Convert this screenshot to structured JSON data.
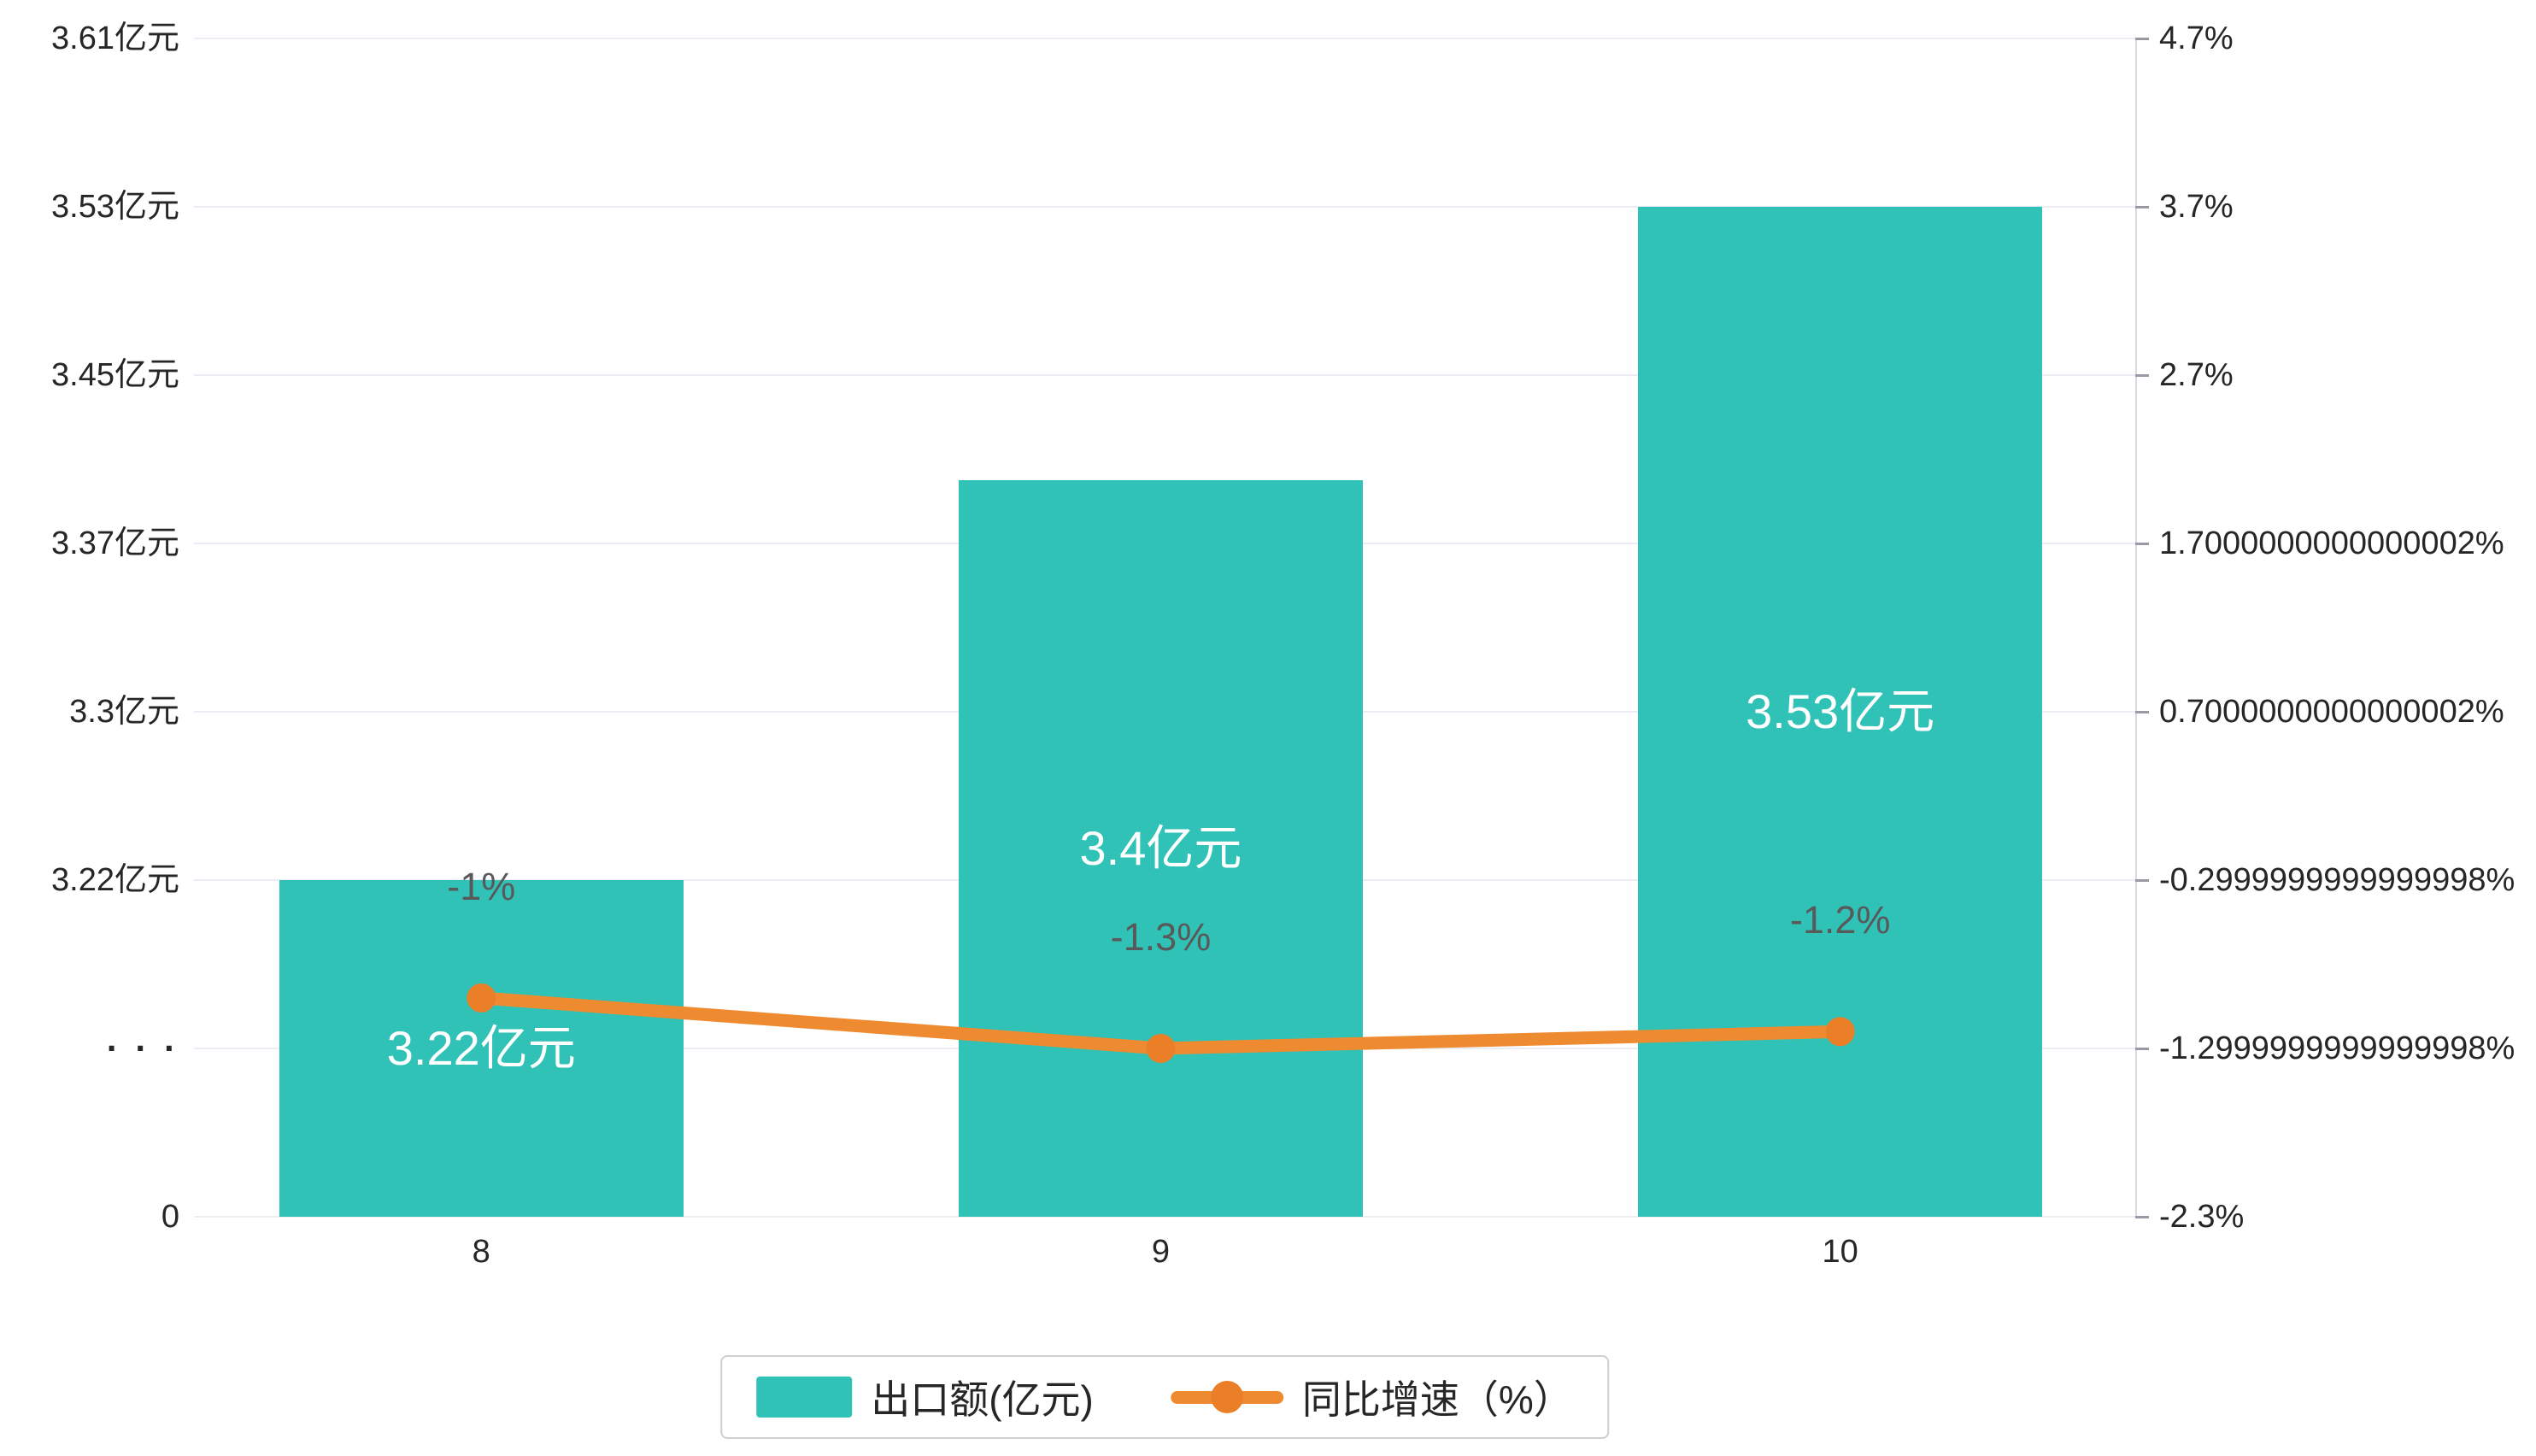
{
  "chart_data": {
    "type": "bar",
    "subtype": "bar-line-combo",
    "categories": [
      "8",
      "9",
      "10"
    ],
    "series": [
      {
        "name": "出口额(亿元)",
        "type": "bar",
        "axis": "left",
        "values": [
          3.22,
          3.4,
          3.53
        ],
        "labels": [
          "3.22亿元",
          "3.4亿元",
          "3.53亿元"
        ],
        "color": "#31c2b7"
      },
      {
        "name": "同比增速（%）",
        "type": "line",
        "axis": "right",
        "values": [
          -1,
          -1.3,
          -1.2
        ],
        "labels": [
          "-1%",
          "-1.3%",
          "-1.2%"
        ],
        "color": "#ee8a30"
      }
    ],
    "left_axis": {
      "tick_labels": [
        "3.61亿元",
        "3.53亿元",
        "3.45亿元",
        "3.37亿元",
        "3.3亿元",
        "3.22亿元",
        "· · ·",
        "0"
      ],
      "value_ticks": [
        3.61,
        3.53,
        3.45,
        3.37,
        3.3,
        3.22
      ],
      "has_break": true,
      "break_label": "· · ·",
      "zero_label": "0"
    },
    "right_axis": {
      "tick_labels": [
        "4.7%",
        "3.7%",
        "2.7%",
        "1.7000000000000002%",
        "0.7000000000000002%",
        "-0.2999999999999998%",
        "-1.2999999999999998%",
        "-2.3%"
      ],
      "max": 4.7,
      "step": 1
    },
    "legend": [
      {
        "label": "出口额(亿元)"
      },
      {
        "label": "同比增速（%）"
      }
    ],
    "grid": true,
    "legend_position": "bottom",
    "colors": {
      "bar": "#31c2b7",
      "line": "#ee8a30",
      "marker": "#ea7f28",
      "grid": "#ececf4",
      "axis_line": "#d9d9e3",
      "tick_mark": "#9a9aa6",
      "bar_label": "#ffffff",
      "growth_label": "#595959",
      "tick_text": "#262626"
    }
  }
}
